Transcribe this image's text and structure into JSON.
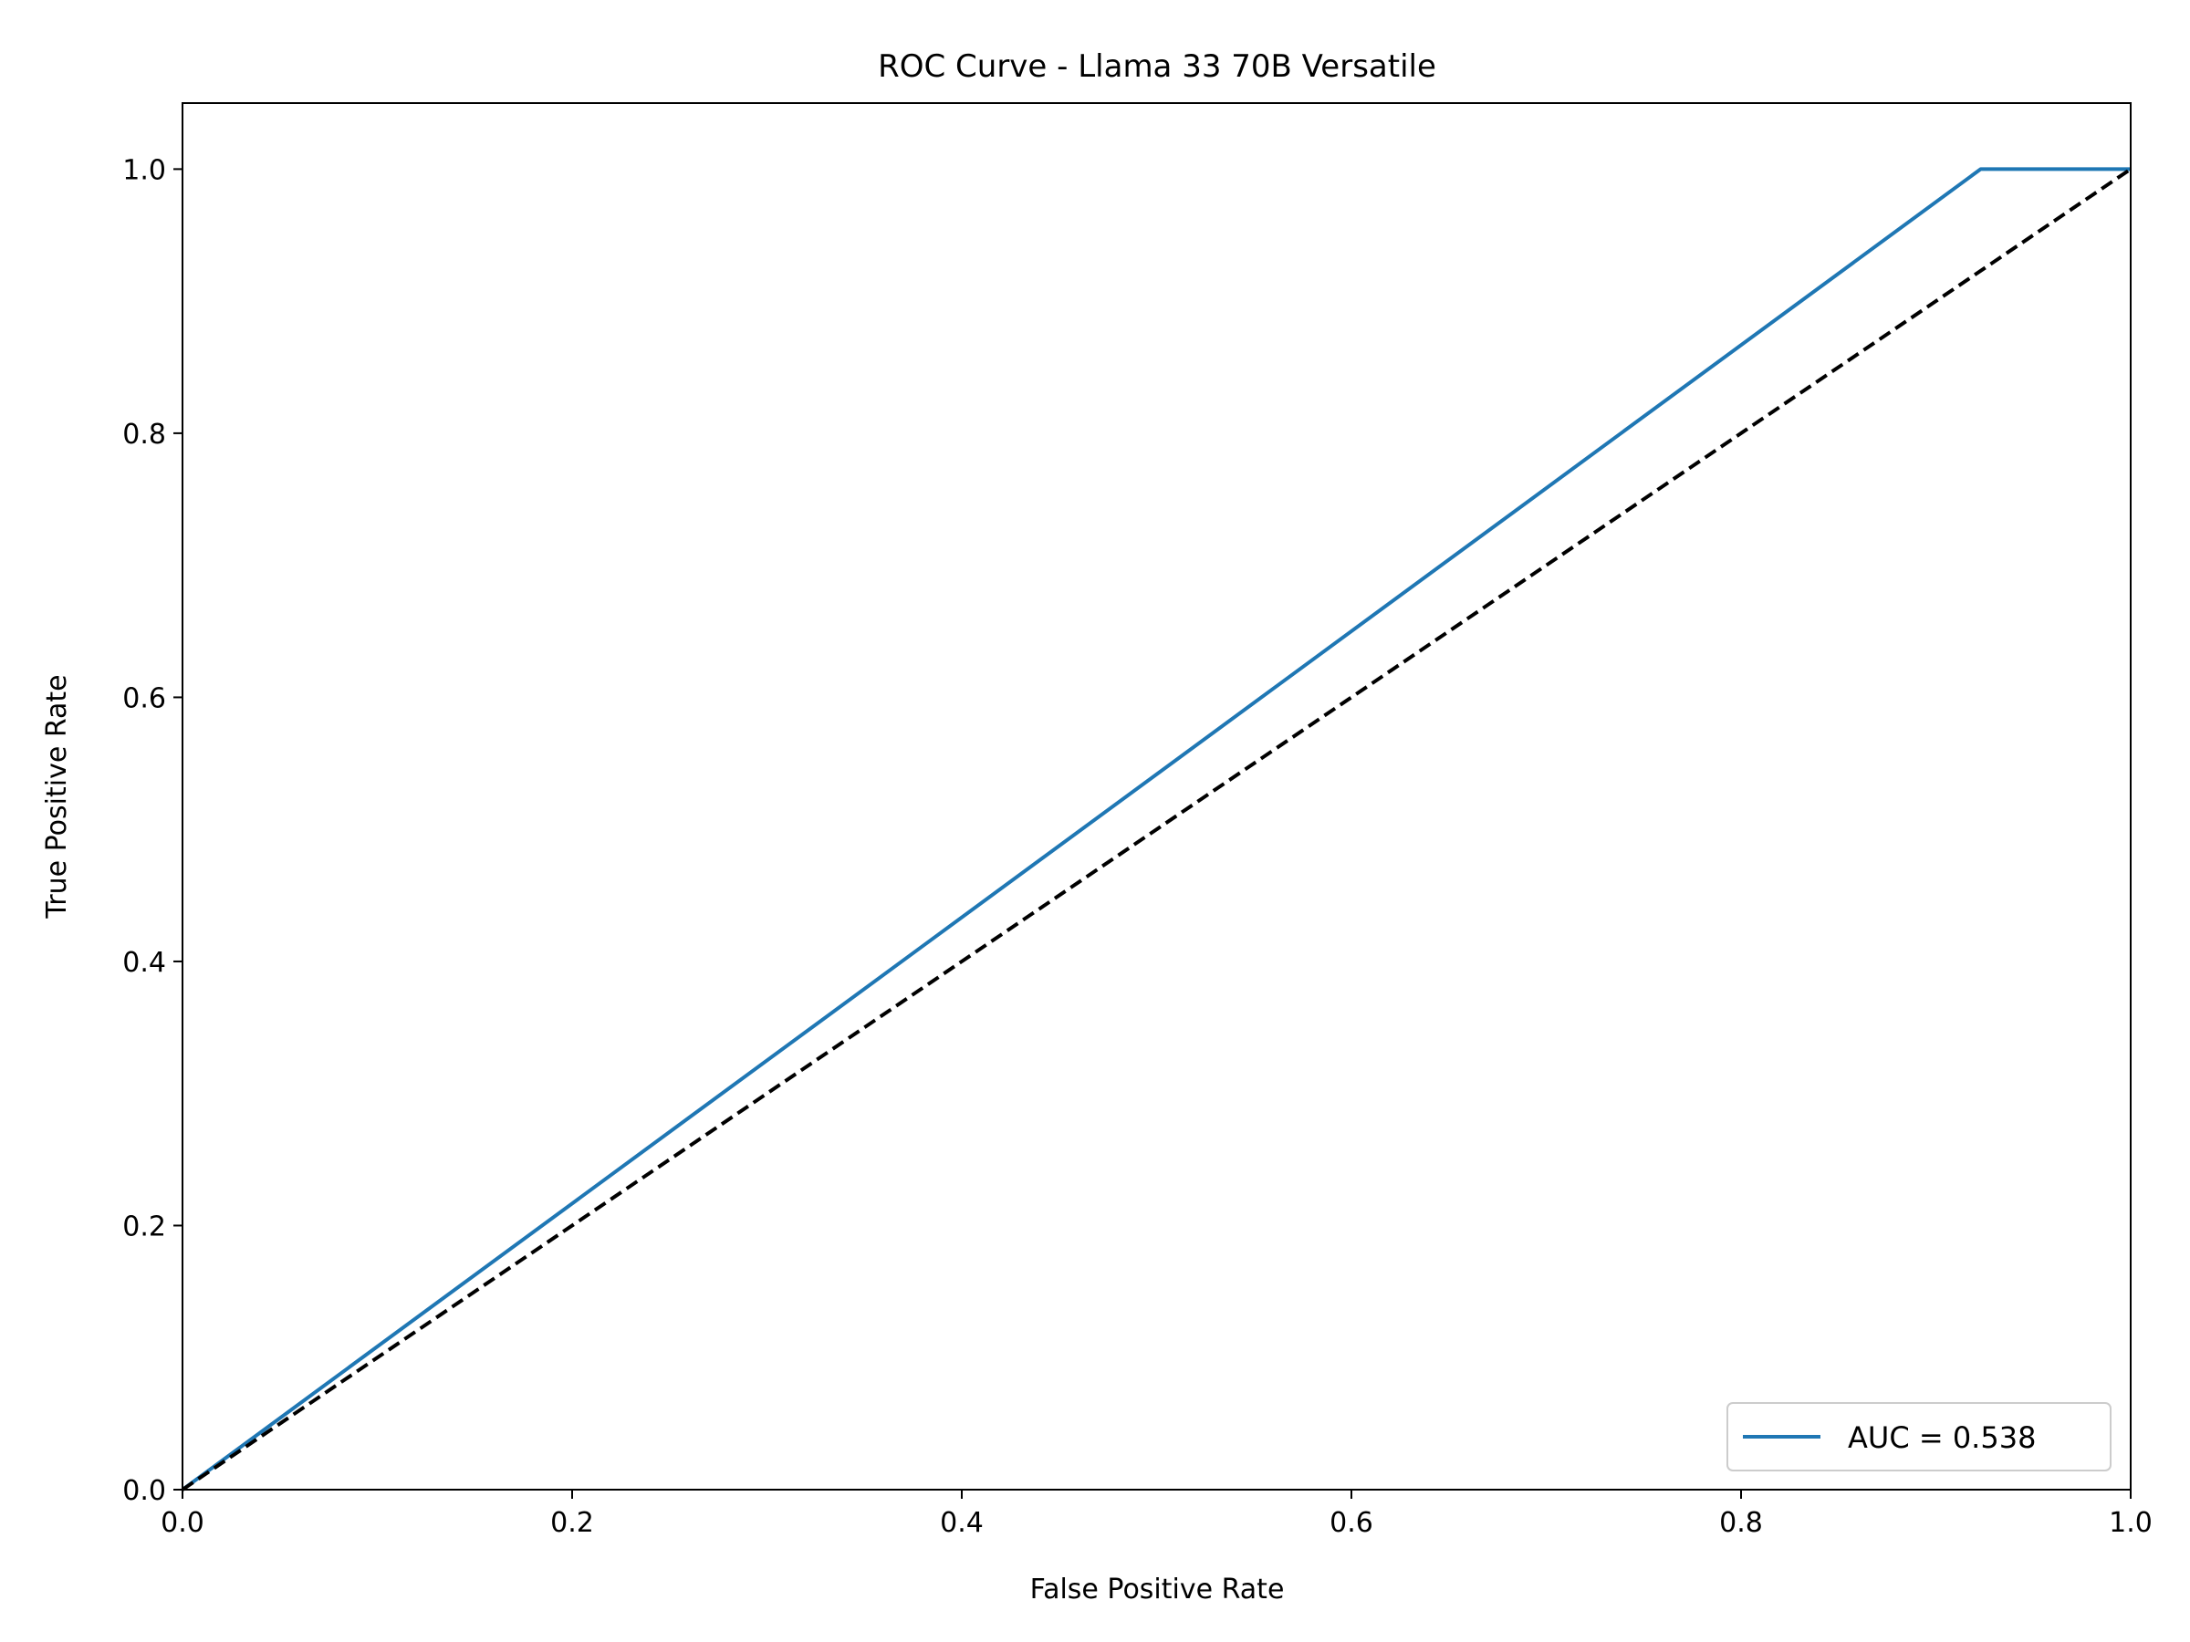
{
  "chart_data": {
    "type": "line",
    "title": "ROC Curve - Llama 33 70B Versatile",
    "xlabel": "False Positive Rate",
    "ylabel": "True Positive Rate",
    "xlim": [
      0.0,
      1.0
    ],
    "ylim": [
      0.0,
      1.05
    ],
    "x_ticks": [
      "0.0",
      "0.2",
      "0.4",
      "0.6",
      "0.8",
      "1.0"
    ],
    "y_ticks": [
      "0.0",
      "0.2",
      "0.4",
      "0.6",
      "0.8",
      "1.0"
    ],
    "grid": false,
    "legend_position": "lower right",
    "series": [
      {
        "name": "AUC = 0.538",
        "color": "#1f77b4",
        "style": "solid",
        "x": [
          0.0,
          0.923,
          1.0
        ],
        "y": [
          0.0,
          1.0,
          1.0
        ]
      },
      {
        "color": "#000000",
        "style": "dashed",
        "x": [
          0.0,
          1.0
        ],
        "y": [
          0.0,
          1.0
        ]
      }
    ]
  }
}
